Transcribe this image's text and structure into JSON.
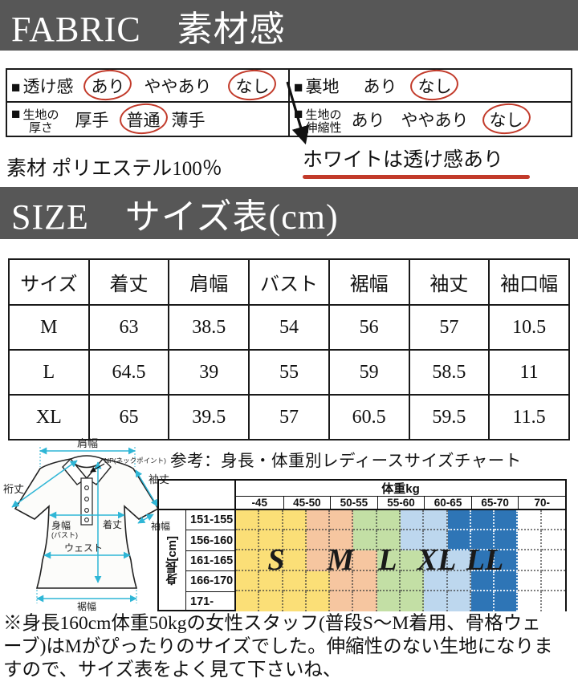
{
  "banners": {
    "fabric": "FABRIC　素材感",
    "size": "SIZE　サイズ表(cm)"
  },
  "fabric_table": {
    "bullet": "■",
    "cells": [
      {
        "label_lines": [
          "透け感"
        ],
        "options": [
          {
            "text": "あり",
            "circled": true
          },
          {
            "text": "ややあり",
            "circled": false
          },
          {
            "text": "なし",
            "circled": true
          }
        ]
      },
      {
        "label_lines": [
          "裏地"
        ],
        "options": [
          {
            "text": "あり",
            "circled": false
          },
          {
            "text": "なし",
            "circled": true
          }
        ]
      },
      {
        "label_lines": [
          "生地の",
          "厚さ"
        ],
        "options": [
          {
            "text": "厚手",
            "circled": false
          },
          {
            "text": "普通",
            "circled": true
          },
          {
            "text": "薄手",
            "circled": false
          }
        ]
      },
      {
        "label_lines": [
          "生地の",
          "伸縮性"
        ],
        "options": [
          {
            "text": "あり",
            "circled": false
          },
          {
            "text": "ややあり",
            "circled": false
          },
          {
            "text": "なし",
            "circled": true
          }
        ]
      }
    ]
  },
  "material_text": "素材 ポリエステル100％",
  "white_note": "ホワイトは透け感あり",
  "size_table": {
    "headers": [
      "サイズ",
      "着丈",
      "肩幅",
      "バスト",
      "裾幅",
      "袖丈",
      "袖口幅"
    ],
    "rows": [
      [
        "M",
        "63",
        "38.5",
        "54",
        "56",
        "57",
        "10.5"
      ],
      [
        "L",
        "64.5",
        "39",
        "55",
        "59",
        "58.5",
        "11"
      ],
      [
        "XL",
        "65",
        "39.5",
        "57",
        "60.5",
        "59.5",
        "11.5"
      ]
    ]
  },
  "diagram_labels": {
    "shoulder": "肩幅",
    "yuki": "裄丈",
    "np": "NP(ネックポイント)",
    "sleeve_length": "袖丈",
    "body_width": "身幅",
    "bust": "(バスト)",
    "length": "着丈",
    "sleeve_width": "袖幅",
    "waist": "ウェスト",
    "hem": "裾幅"
  },
  "chart_caption": "参考：身長・体重別レディースサイズチャート",
  "chart_data": {
    "type": "heatmap",
    "weight_axis_label": "体重kg",
    "weight_cols": [
      "-45",
      "45-50",
      "50-55",
      "55-60",
      "60-65",
      "65-70",
      "70-"
    ],
    "height_axis_label": "身長[cm]",
    "height_rows": [
      "151-155",
      "156-160",
      "161-165",
      "166-170",
      "171-"
    ],
    "size_letters": [
      "S",
      "M",
      "L",
      "XL",
      "LL"
    ],
    "palette": {
      "S": "#fbdf77",
      "M": "#f6c6a0",
      "L": "#c3dfa5",
      "X": "#bdd7ee",
      "D": "#2e75b6",
      "-": "#ffffff"
    },
    "legend": {
      "S": "S",
      "M": "M",
      "L": "L",
      "X": "XL",
      "D": "LL",
      "-": ""
    },
    "grid_half_columns": [
      "SSSMMLLXXDDD--",
      "SSSMMLLXXDDD--",
      "SSSMMMLLXXDD--",
      "SSSSMMLLXXDD--",
      "SSSSMMLLXXDD--"
    ]
  },
  "footnote_lines": [
    "※身長160cm体重50kgの女性スタッフ(普段S〜M着用、骨格ウェ",
    "ーブ)はMがぴったりのサイズでした。伸縮性のない生地になりま",
    "すので、サイズ表をよく見て下さいね、"
  ]
}
